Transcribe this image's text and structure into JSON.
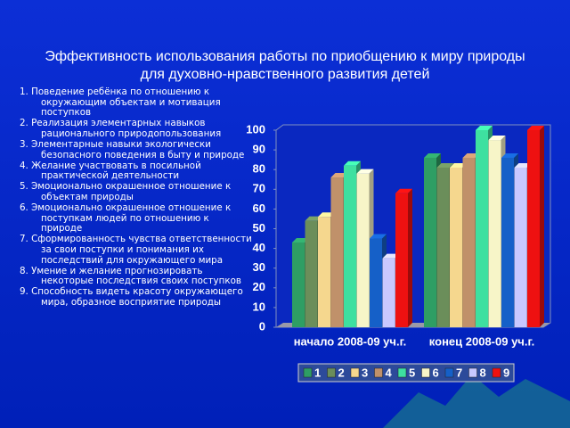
{
  "title": "Эффективность использования работы по приобщению к миру природы для духовно-нравственного развития детей",
  "criteria": [
    "1. Поведение ребёнка по отношению к окружающим объектам и мотивация поступков",
    "2. Реализация элементарных навыков рационального природопользования",
    "3. Элементарные навыки экологически безопасного поведения в быту и природе",
    "4. Желание участвовать в посильной практической деятельности",
    "5. Эмоционально окрашенное отношение к объектам природы",
    "6. Эмоционально окрашенное отношение к поступкам людей по отношению к природе",
    "7. Сформированность чувства ответственности за свои поступки и понимания их последствий для окружающего мира",
    "8. Умение и желание прогнозировать некоторые последствия своих поступков",
    "9. Способность видеть красоту окружающего мира, образное восприятие природы"
  ],
  "chart_data": {
    "type": "bar3d",
    "categories": [
      "начало 2008-09 уч.г.",
      "конец 2008-09 уч.г."
    ],
    "series": [
      {
        "name": "1",
        "color": "#2e9e64",
        "values": [
          43,
          86
        ]
      },
      {
        "name": "2",
        "color": "#6b8e5a",
        "values": [
          54,
          81
        ]
      },
      {
        "name": "3",
        "color": "#f5d78e",
        "values": [
          56,
          81
        ]
      },
      {
        "name": "4",
        "color": "#c0916a",
        "values": [
          76,
          86
        ]
      },
      {
        "name": "5",
        "color": "#3ee0a0",
        "values": [
          82,
          100
        ]
      },
      {
        "name": "6",
        "color": "#f7f5c8",
        "values": [
          78,
          95
        ]
      },
      {
        "name": "7",
        "color": "#1560c8",
        "values": [
          45,
          86
        ]
      },
      {
        "name": "8",
        "color": "#c8c8ff",
        "values": [
          35,
          81
        ]
      },
      {
        "name": "9",
        "color": "#ee1111",
        "values": [
          68,
          100
        ]
      }
    ],
    "ylim": [
      0,
      100
    ],
    "yticks": [
      0,
      10,
      20,
      30,
      40,
      50,
      60,
      70,
      80,
      90,
      100
    ],
    "legend": "bottom"
  }
}
